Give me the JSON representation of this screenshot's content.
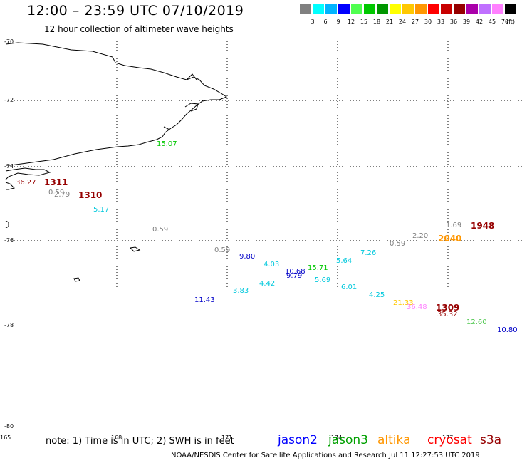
{
  "header": {
    "title": "12:00 – 23:59 UTC 07/10/2019",
    "subtitle": "12 hour collection of altimeter wave heights"
  },
  "colorbar": {
    "colors": [
      "#808080",
      "#00ffff",
      "#00b4ff",
      "#0000ff",
      "#50ff50",
      "#00c800",
      "#009600",
      "#ffff00",
      "#ffc800",
      "#ff9600",
      "#ff0000",
      "#c80000",
      "#960000",
      "#aa00aa",
      "#c070ff",
      "#ff80ff",
      "#000000"
    ],
    "labels": [
      "3",
      "6",
      "9",
      "12",
      "15",
      "18",
      "21",
      "24",
      "27",
      "30",
      "33",
      "36",
      "39",
      "42",
      "45",
      "70"
    ],
    "unit": "(ft)"
  },
  "axes": {
    "lat_labels": [
      "-70",
      "-72",
      "-74",
      "-76",
      "-78",
      "-80"
    ],
    "lon_labels": [
      "165",
      "168",
      "171",
      "-174",
      "177"
    ]
  },
  "observations": [
    {
      "text": "36.27",
      "color": "#960000",
      "size": "small"
    },
    {
      "text": "1311",
      "color": "#960000",
      "size": "big"
    },
    {
      "text": "0.59",
      "color": "#808080",
      "size": "small"
    },
    {
      "text": "2.79",
      "color": "#808080",
      "size": "small"
    },
    {
      "text": "1310",
      "color": "#960000",
      "size": "big"
    },
    {
      "text": "5.17",
      "color": "#00c8dc",
      "size": "small"
    },
    {
      "text": "15.07",
      "color": "#00c800",
      "size": "small"
    },
    {
      "text": "0.59",
      "color": "#808080",
      "size": "small"
    },
    {
      "text": "0.59",
      "color": "#808080",
      "size": "small"
    },
    {
      "text": "9.80",
      "color": "#0000c8",
      "size": "small"
    },
    {
      "text": "4.03",
      "color": "#00c8dc",
      "size": "small"
    },
    {
      "text": "10.68",
      "color": "#0000c8",
      "size": "small"
    },
    {
      "text": "9.79",
      "color": "#0000c8",
      "size": "small"
    },
    {
      "text": "15.71",
      "color": "#00c800",
      "size": "small"
    },
    {
      "text": "5.64",
      "color": "#00c8dc",
      "size": "small"
    },
    {
      "text": "7.26",
      "color": "#00c8dc",
      "size": "small"
    },
    {
      "text": "4.42",
      "color": "#00c8dc",
      "size": "small"
    },
    {
      "text": "3.83",
      "color": "#00c8dc",
      "size": "small"
    },
    {
      "text": "5.69",
      "color": "#00c8dc",
      "size": "small"
    },
    {
      "text": "11.43",
      "color": "#0000c8",
      "size": "small"
    },
    {
      "text": "6.01",
      "color": "#00c8dc",
      "size": "small"
    },
    {
      "text": "4.25",
      "color": "#00c8dc",
      "size": "small"
    },
    {
      "text": "0.59",
      "color": "#808080",
      "size": "small"
    },
    {
      "text": "2.20",
      "color": "#808080",
      "size": "small"
    },
    {
      "text": "1.69",
      "color": "#808080",
      "size": "small"
    },
    {
      "text": "1948",
      "color": "#960000",
      "size": "big"
    },
    {
      "text": "2040",
      "color": "#ff9600",
      "size": "big"
    },
    {
      "text": "21.33",
      "color": "#ffc800",
      "size": "small"
    },
    {
      "text": "36.48",
      "color": "#ff80ff",
      "size": "small"
    },
    {
      "text": "1309",
      "color": "#960000",
      "size": "big"
    },
    {
      "text": "35.32",
      "color": "#960000",
      "size": "small"
    },
    {
      "text": "12.60",
      "color": "#50c850",
      "size": "small"
    },
    {
      "text": "10.80",
      "color": "#0000c8",
      "size": "small"
    }
  ],
  "note": "note:  1) Time is in UTC;  2) SWH is in feet",
  "legend": [
    {
      "name": "jason2",
      "color": "#0000ff"
    },
    {
      "name": "jason3",
      "color": "#00a000"
    },
    {
      "name": "altika",
      "color": "#ff9600"
    },
    {
      "name": "cryosat",
      "color": "#ff0000"
    },
    {
      "name": "s3a",
      "color": "#960000"
    }
  ],
  "footer": "NOAA/NESDIS Center for Satellite Applications and Research    Jul 11 12:27:53 UTC 2019"
}
